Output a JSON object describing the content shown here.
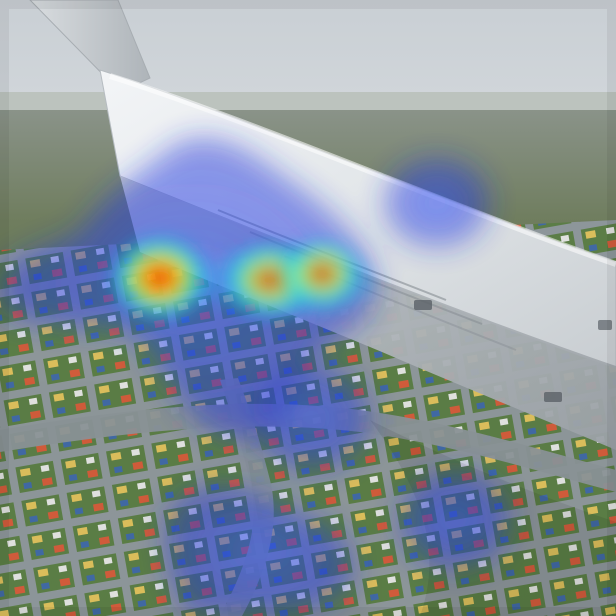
{
  "image": {
    "subject": "airplane-wing-over-play-mat-city",
    "overlay": "attention-heatmap"
  },
  "palette": {
    "sky_top": "#c9cfd4",
    "sky_bottom": "#e6e9ec",
    "haze": "#b9c0b8",
    "ground_far": "#6f7d5e",
    "ground_near": "#5f7a4a",
    "road": "#8d949a",
    "wing_light": "#f1f3f5",
    "wing_mid": "#d6dadd",
    "wing_dark": "#9aa0a5",
    "heat_low": "#1f2fd6",
    "heat_mid": "#19d6ff",
    "heat_high": "#ff2a00"
  }
}
